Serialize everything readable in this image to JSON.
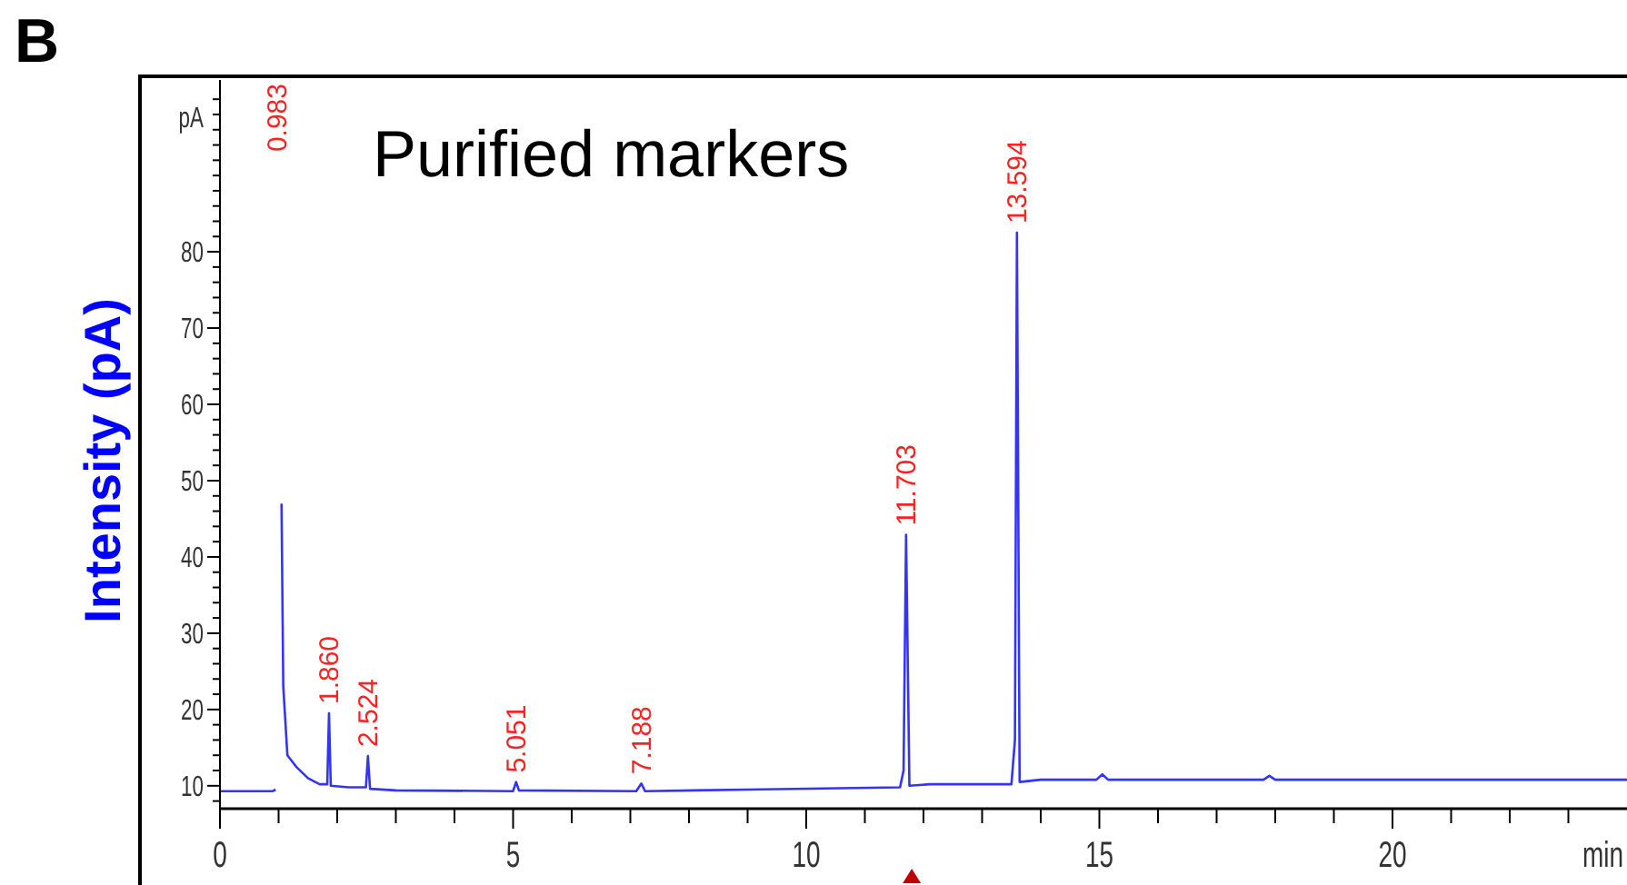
{
  "chart_data": {
    "type": "line",
    "title": "Purified  markers",
    "xlabel": "min",
    "ylabel": "Intensity (pA)",
    "annotations": [
      "B",
      "pA",
      "0.983",
      {
        "text": "1.860",
        "x": 1.86,
        "y": 19.5
      },
      {
        "text": "2.524",
        "x": 2.524,
        "y": 13.9
      },
      {
        "text": "5.051",
        "x": 5.051,
        "y": 10.5
      },
      {
        "text": "7.188",
        "x": 7.188,
        "y": 10.3
      },
      {
        "text": "11.703",
        "x": 11.703,
        "y": 42.9
      },
      {
        "text": "13.594",
        "x": 13.594,
        "y": 82.5
      }
    ],
    "series": [
      {
        "color": "#3333ff",
        "x": [
          0,
          0.9,
          0.95,
          0.983,
          1.02,
          1.05,
          1.08,
          1.15,
          1.3,
          1.5,
          1.7,
          1.83,
          1.86,
          1.89,
          2.2,
          2.49,
          2.524,
          2.56,
          3,
          5.0,
          5.051,
          5.1,
          7.1,
          7.188,
          7.25,
          9,
          11.6,
          11.66,
          11.703,
          11.76,
          12.1,
          13.5,
          13.56,
          13.594,
          13.64,
          14,
          14.95,
          15.05,
          15.15,
          17.8,
          17.9,
          18,
          24
        ],
        "values": [
          9.3,
          9.3,
          9.5,
          null,
          null,
          47,
          23,
          14,
          12.5,
          11,
          10.2,
          10.2,
          19.5,
          10,
          9.8,
          9.8,
          13.9,
          9.6,
          9.4,
          9.3,
          10.5,
          9.4,
          9.3,
          10.3,
          9.3,
          9.5,
          9.8,
          12,
          42.9,
          10,
          10.2,
          10.2,
          16,
          82.5,
          10.5,
          10.8,
          10.8,
          11.5,
          10.8,
          10.8,
          11.3,
          10.8,
          10.8
        ]
      }
    ],
    "xlim": [
      0,
      24
    ],
    "xticks": [
      0,
      {
        "value": 1,
        "label": null
      },
      {
        "value": 2,
        "label": null
      },
      {
        "value": 3,
        "label": null
      },
      {
        "value": 4,
        "label": null
      },
      5,
      {
        "value": 6,
        "label": null
      },
      {
        "value": 7,
        "label": null
      },
      {
        "value": 8,
        "label": null
      },
      {
        "value": 9,
        "label": null
      },
      10,
      {
        "value": 11,
        "label": null
      },
      {
        "value": 12,
        "label": null
      },
      {
        "value": 13,
        "label": null
      },
      {
        "value": 14,
        "label": null
      },
      15,
      {
        "value": 16,
        "label": null
      },
      {
        "value": 17,
        "label": null
      },
      {
        "value": 18,
        "label": null
      },
      {
        "value": 19,
        "label": null
      },
      20,
      {
        "value": 21,
        "label": null
      },
      {
        "value": 22,
        "label": null
      },
      {
        "value": 23,
        "label": null
      }
    ],
    "ylim": [
      7,
      103
    ],
    "yticks": [
      {
        "value": 8,
        "label": null
      },
      10,
      {
        "value": 12,
        "label": null
      },
      {
        "value": 14,
        "label": null
      },
      {
        "value": 16,
        "label": null
      },
      {
        "value": 18,
        "label": null
      },
      20,
      {
        "value": 22,
        "label": null
      },
      {
        "value": 24,
        "label": null
      },
      {
        "value": 26,
        "label": null
      },
      {
        "value": 28,
        "label": null
      },
      30,
      {
        "value": 32,
        "label": null
      },
      {
        "value": 34,
        "label": null
      },
      {
        "value": 36,
        "label": null
      },
      {
        "value": 38,
        "label": null
      },
      40,
      {
        "value": 42,
        "label": null
      },
      {
        "value": 44,
        "label": null
      },
      {
        "value": 46,
        "label": null
      },
      {
        "value": 48,
        "label": null
      },
      50,
      {
        "value": 52,
        "label": null
      },
      {
        "value": 54,
        "label": null
      },
      {
        "value": 56,
        "label": null
      },
      {
        "value": 58,
        "label": null
      },
      60,
      {
        "value": 62,
        "label": null
      },
      {
        "value": 64,
        "label": null
      },
      {
        "value": 66,
        "label": null
      },
      {
        "value": 68,
        "label": null
      },
      70,
      {
        "value": 72,
        "label": null
      },
      {
        "value": 74,
        "label": null
      },
      {
        "value": 76,
        "label": null
      },
      {
        "value": 78,
        "label": null
      },
      80,
      {
        "value": 82,
        "label": null
      },
      {
        "value": 84,
        "label": null
      },
      {
        "value": 86,
        "label": null
      },
      {
        "value": 88,
        "label": null
      },
      {
        "value": 90,
        "label": null
      },
      {
        "value": 92,
        "label": null
      },
      {
        "value": 94,
        "label": null
      },
      {
        "value": 96,
        "label": null
      },
      {
        "value": 98,
        "label": null
      },
      {
        "value": 100,
        "label": null
      }
    ]
  }
}
